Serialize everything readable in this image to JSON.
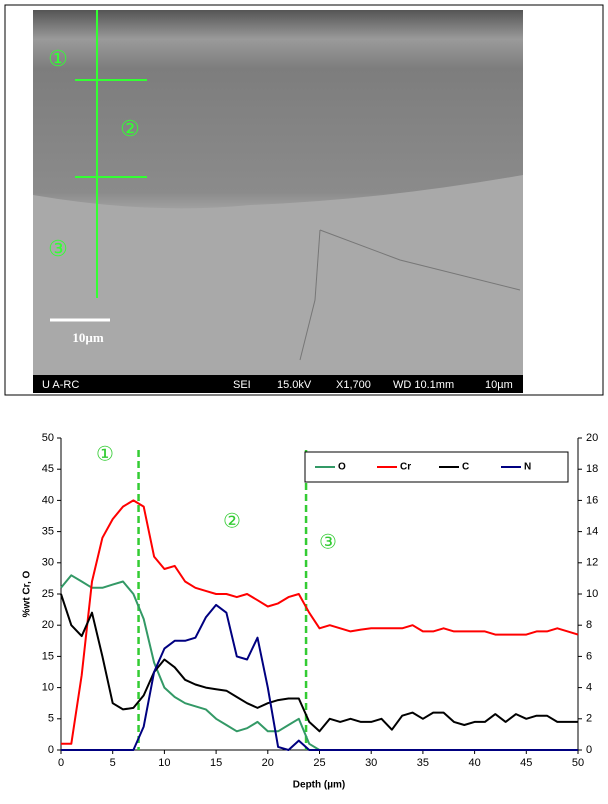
{
  "sem_image": {
    "zone_labels": [
      "①",
      "②",
      "③"
    ],
    "scale_label": "10µm",
    "status_bar": [
      "U A-RC",
      "SEI",
      "15.0kV",
      "X1,700",
      "WD 10.1mm",
      "10µm"
    ]
  },
  "chart_data": {
    "type": "line",
    "x_label": "Depth (µm)",
    "y_label": "%wt Cr, O",
    "x": [
      0,
      1,
      2,
      3,
      4,
      5,
      6,
      7,
      8,
      9,
      10,
      11,
      12,
      13,
      14,
      15,
      16,
      17,
      18,
      19,
      20,
      21,
      22,
      23,
      24,
      25,
      26,
      27,
      28,
      29,
      30,
      31,
      32,
      33,
      34,
      35,
      36,
      37,
      38,
      39,
      40,
      41,
      42,
      43,
      44,
      45,
      46,
      47,
      48,
      49,
      50
    ],
    "xlim": [
      0,
      50
    ],
    "xticks": [
      0,
      5,
      10,
      15,
      20,
      25,
      30,
      35,
      40,
      45,
      50
    ],
    "ylim": [
      0,
      50
    ],
    "yticks": [
      0,
      5,
      10,
      15,
      20,
      25,
      30,
      35,
      40,
      45,
      50
    ],
    "y2lim": [
      0,
      20
    ],
    "y2ticks": [
      0,
      2,
      4,
      6,
      8,
      10,
      12,
      14,
      16,
      18,
      20
    ],
    "legend": "top-right",
    "zone_boundaries": [
      7.5,
      23.7
    ],
    "zone_labels": [
      "①",
      "②",
      "③"
    ],
    "zone_color": "#33cc33",
    "series": [
      {
        "name": "O",
        "color": "#339966",
        "values": [
          26,
          28,
          27,
          26,
          26,
          26.5,
          27,
          25,
          21,
          14,
          10,
          8.5,
          7.5,
          7,
          6.5,
          5,
          4,
          3,
          3.5,
          4.5,
          3,
          3,
          4,
          5,
          1,
          0,
          0,
          0,
          0,
          0,
          0,
          0,
          0,
          0,
          0,
          0,
          0,
          0,
          0,
          0,
          0,
          0,
          0,
          0,
          0,
          0,
          0,
          0,
          0,
          0,
          0
        ]
      },
      {
        "name": "Cr",
        "color": "#ff0000",
        "values": [
          1,
          1,
          12,
          27,
          34,
          37,
          39,
          40,
          39,
          31,
          29,
          29.5,
          27,
          26,
          25.5,
          25,
          25,
          24.5,
          25,
          24,
          23,
          23.5,
          24.5,
          25,
          22,
          19.5,
          20,
          19.5,
          19,
          19.3,
          19.5,
          19.5,
          19.5,
          19.5,
          20,
          19,
          19,
          19.5,
          19,
          19,
          19,
          19,
          18.5,
          18.5,
          18.5,
          18.5,
          19,
          19,
          19.5,
          19,
          18.5
        ]
      },
      {
        "name": "C",
        "color": "#000000",
        "axis": "y2",
        "values": [
          10,
          8,
          7.3,
          8.8,
          6,
          3,
          2.6,
          2.7,
          3.5,
          5,
          5.8,
          5.3,
          4.5,
          4.2,
          4,
          3.9,
          3.8,
          3.4,
          3,
          2.7,
          3,
          3.2,
          3.3,
          3.3,
          1.8,
          1.2,
          2,
          1.8,
          2,
          1.8,
          1.8,
          2,
          1.3,
          2.2,
          2.4,
          2,
          2.4,
          2.4,
          1.8,
          1.6,
          1.8,
          1.8,
          2.3,
          1.8,
          2.3,
          2,
          2.2,
          2.2,
          1.8,
          1.8,
          1.8
        ]
      },
      {
        "name": "N",
        "color": "#000080",
        "axis": "y2",
        "values": [
          0,
          0,
          0,
          0,
          0,
          0,
          0,
          0,
          1.5,
          5,
          6.5,
          7,
          7,
          7.2,
          8.5,
          9.3,
          8.8,
          6,
          5.8,
          7.2,
          4,
          0.2,
          0,
          0.6,
          0,
          0,
          0,
          0,
          0,
          0,
          0,
          0,
          0,
          0,
          0,
          0,
          0,
          0,
          0,
          0,
          0,
          0,
          0,
          0,
          0,
          0,
          0,
          0,
          0,
          0,
          0
        ]
      }
    ]
  }
}
